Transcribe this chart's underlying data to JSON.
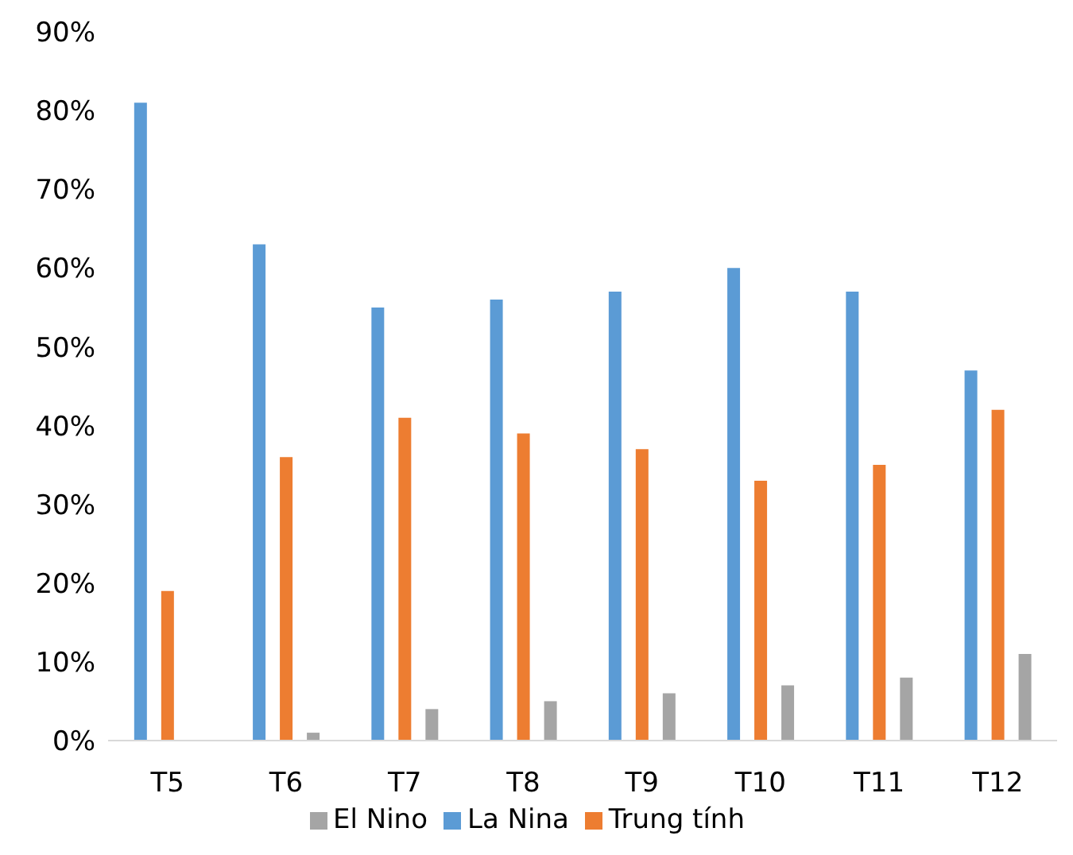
{
  "chart_data": {
    "type": "bar",
    "categories": [
      "T5",
      "T6",
      "T7",
      "T8",
      "T9",
      "T10",
      "T11",
      "T12"
    ],
    "series": [
      {
        "name": "La Nina",
        "color": "#5b9bd5",
        "values": [
          81,
          63,
          55,
          56,
          57,
          60,
          57,
          47
        ]
      },
      {
        "name": "Trung tính",
        "color": "#ed7d31",
        "values": [
          19,
          36,
          41,
          39,
          37,
          33,
          35,
          42
        ]
      },
      {
        "name": "El Nino",
        "color": "#a5a5a5",
        "values": [
          0,
          1,
          4,
          5,
          6,
          7,
          8,
          11
        ]
      }
    ],
    "ylim": [
      0,
      90
    ],
    "yticks": [
      {
        "value": 0,
        "label": "0%"
      },
      {
        "value": 10,
        "label": "10%"
      },
      {
        "value": 20,
        "label": "20%"
      },
      {
        "value": 30,
        "label": "30%"
      },
      {
        "value": 40,
        "label": "40%"
      },
      {
        "value": 50,
        "label": "50%"
      },
      {
        "value": 60,
        "label": "60%"
      },
      {
        "value": 70,
        "label": "70%"
      },
      {
        "value": 80,
        "label": "80%"
      },
      {
        "value": 90,
        "label": "90%"
      }
    ],
    "grid": false,
    "legend": "bottom"
  }
}
